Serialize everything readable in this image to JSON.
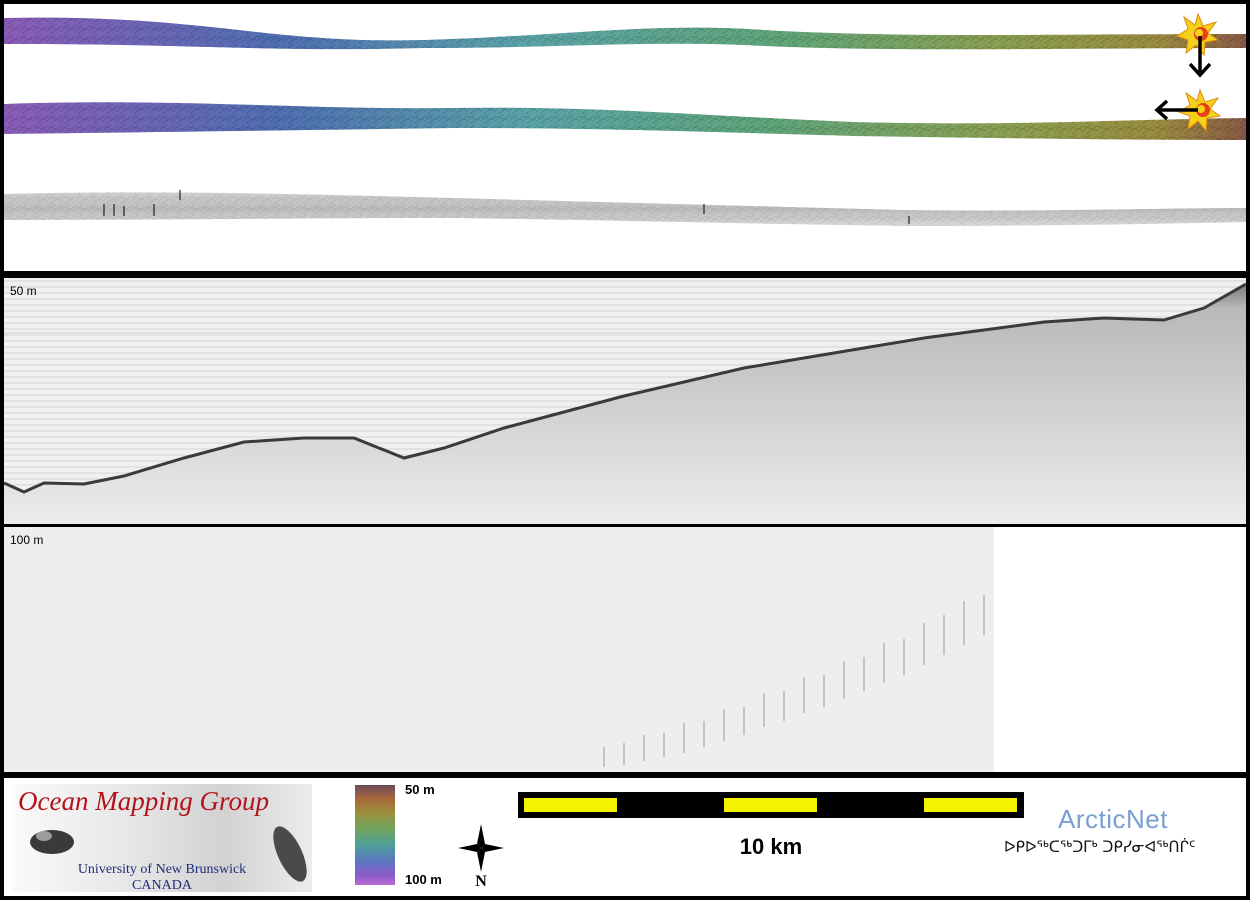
{
  "profiles": {
    "upper": {
      "depth_label": "50 m"
    },
    "lower": {
      "depth_label": "100 m"
    }
  },
  "depth_color_bar": {
    "top_label": "50 m",
    "bottom_label": "100 m",
    "colors": [
      "#6e4a5a",
      "#a8683a",
      "#9a8f3c",
      "#6fa65e",
      "#4e9f9a",
      "#5a78c0",
      "#8a5cc8",
      "#b86ad0"
    ]
  },
  "scale_bar": {
    "label": "10 km",
    "fill_color": "#f5f200",
    "segment_count": 5
  },
  "logos": {
    "ocean_mapping_group": {
      "title": "Ocean Mapping Group",
      "institution": "University of New Brunswick",
      "country": "CANADA",
      "title_color": "#b3121b",
      "text_color": "#1e2d7a"
    },
    "arcticnet": {
      "title": "ArcticNet",
      "syllabics": "ᐅᑭᐅᖅᑕᖅᑐᒥᒃ ᑐᑭᓯᓂᐊᖅᑎᒌᑦ",
      "title_color": "#7a9fd2"
    }
  },
  "icons": {
    "compass": "north-arrow-icon",
    "markers": "sunburst-marker-icon",
    "arrows": [
      "arrow-down-icon",
      "arrow-left-icon"
    ]
  }
}
